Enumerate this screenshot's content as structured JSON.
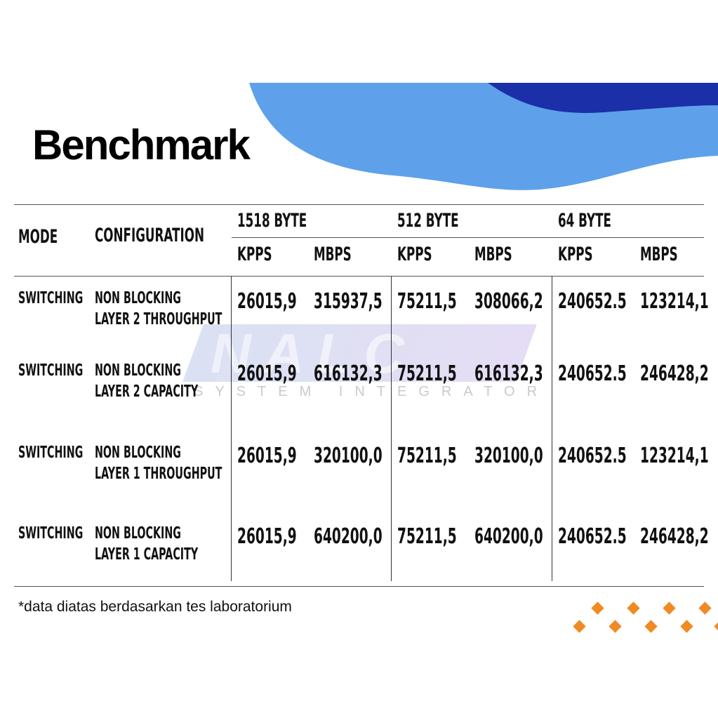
{
  "title": "Benchmark",
  "watermark": {
    "logo": "NALC",
    "tagline": "SYSTEM INTEGRATOR"
  },
  "colors": {
    "wave_light": "#5ea1ea",
    "wave_dark": "#1a2fa8",
    "accent_diamonds": "#f08a24"
  },
  "table": {
    "headers": {
      "mode": "MODE",
      "configuration": "CONFIGURATION",
      "groups": [
        "1518 BYTE",
        "512 BYTE",
        "64 BYTE"
      ],
      "sub": [
        "KPPS",
        "MBPS",
        "KPPS",
        "MBPS",
        "KPPS",
        "MBPS"
      ]
    },
    "rows": [
      {
        "mode": "SWITCHING",
        "config1": "NON BLOCKING",
        "config2": "LAYER 2 THROUGHPUT",
        "values": [
          "26015,9",
          "315937,5",
          "75211,5",
          "308066,2",
          "240652.5",
          "123214,1"
        ]
      },
      {
        "mode": "SWITCHING",
        "config1": "NON BLOCKING",
        "config2": "LAYER 2 CAPACITY",
        "values": [
          "26015,9",
          "616132,3",
          "75211,5",
          "616132,3",
          "240652.5",
          "246428,2"
        ]
      },
      {
        "mode": "SWITCHING",
        "config1": "NON BLOCKING",
        "config2": "LAYER 1 THROUGHPUT",
        "values": [
          "26015,9",
          "320100,0",
          "75211,5",
          "320100,0",
          "240652.5",
          "123214,1"
        ]
      },
      {
        "mode": "SWITCHING",
        "config1": "NON BLOCKING",
        "config2": "LAYER 1 CAPACITY",
        "values": [
          "26015,9",
          "640200,0",
          "75211,5",
          "640200,0",
          "240652.5",
          "246428,2"
        ]
      }
    ]
  },
  "footnote": "*data diatas berdasarkan tes laboratorium"
}
